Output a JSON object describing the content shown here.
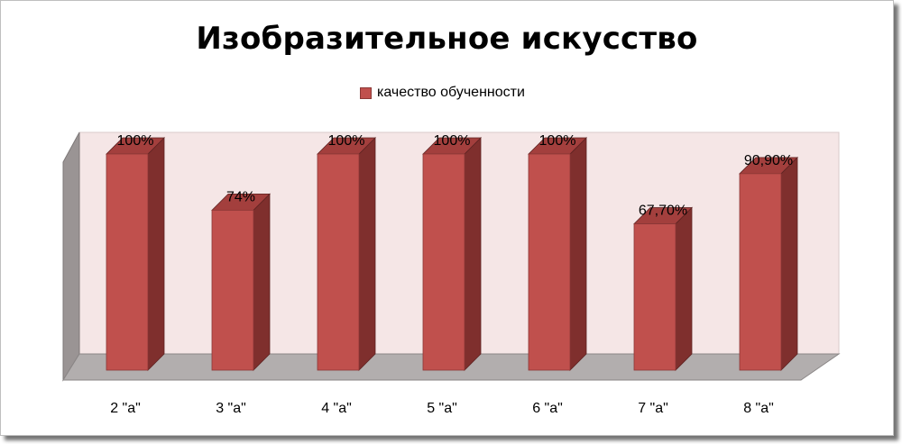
{
  "chart_data": {
    "type": "bar",
    "title": "Изобразительное искусство",
    "categories": [
      "2 \"а\"",
      "3 \"а\"",
      "4 \"а\"",
      "5 \"а\"",
      "6 \"а\"",
      "7 \"а\"",
      "8 \"а\""
    ],
    "series": [
      {
        "name": "качество обученности",
        "values": [
          100,
          74,
          100,
          100,
          100,
          67.7,
          90.9
        ],
        "labels": [
          "100%",
          "74%",
          "100%",
          "100%",
          "100%",
          "67,70%",
          "90,90%"
        ]
      }
    ],
    "ylim": [
      0,
      100
    ],
    "legend": "top",
    "grid": false,
    "colors": {
      "bar_front": "#c0504d",
      "bar_side": "#7f2f2d",
      "bar_top": "#a33f3d",
      "wall_back": "#f5e6e6",
      "wall_side": "#9a9494",
      "floor": "#b2aeae"
    }
  }
}
